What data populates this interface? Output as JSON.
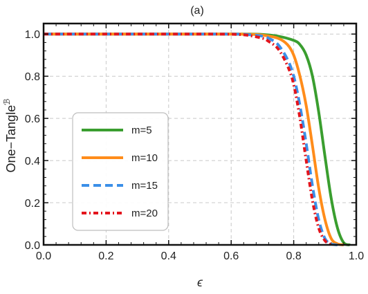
{
  "chart_data": {
    "type": "line",
    "title": "(a)",
    "xlabel": "ϵ",
    "ylabel": "One−Tangle",
    "ylabel_superscript": "ℬ",
    "xlim": [
      0,
      1
    ],
    "ylim": [
      0,
      1.05
    ],
    "xticks": [
      "0.0",
      "0.2",
      "0.4",
      "0.6",
      "0.8",
      "1.0"
    ],
    "yticks": [
      "0.0",
      "0.2",
      "0.4",
      "0.6",
      "0.8",
      "1.0"
    ],
    "grid": true,
    "legend_position": "center-left",
    "series": [
      {
        "name": "m=5",
        "color": "#3a9e2f",
        "dash": "solid",
        "x": [
          0.0,
          0.5,
          0.6,
          0.65,
          0.7,
          0.75,
          0.8,
          0.82,
          0.84,
          0.86,
          0.88,
          0.9,
          0.92,
          0.94,
          0.96,
          0.98
        ],
        "y": [
          1.0,
          1.0,
          1.0,
          1.0,
          0.998,
          0.99,
          0.97,
          0.95,
          0.9,
          0.8,
          0.63,
          0.42,
          0.22,
          0.08,
          0.01,
          0.0
        ]
      },
      {
        "name": "m=10",
        "color": "#ff8c1a",
        "dash": "solid",
        "x": [
          0.0,
          0.5,
          0.6,
          0.65,
          0.7,
          0.75,
          0.78,
          0.8,
          0.82,
          0.84,
          0.86,
          0.88,
          0.9,
          0.92,
          0.94,
          0.96
        ],
        "y": [
          1.0,
          1.0,
          1.0,
          0.999,
          0.995,
          0.98,
          0.95,
          0.9,
          0.8,
          0.66,
          0.47,
          0.27,
          0.12,
          0.03,
          0.005,
          0.0
        ]
      },
      {
        "name": "m=15",
        "color": "#3b8fe8",
        "dash": "dashed",
        "x": [
          0.0,
          0.5,
          0.6,
          0.65,
          0.7,
          0.72,
          0.75,
          0.78,
          0.8,
          0.82,
          0.84,
          0.86,
          0.88,
          0.9,
          0.92,
          0.94
        ],
        "y": [
          1.0,
          1.0,
          1.0,
          0.998,
          0.99,
          0.98,
          0.95,
          0.88,
          0.8,
          0.66,
          0.48,
          0.28,
          0.12,
          0.03,
          0.005,
          0.0
        ]
      },
      {
        "name": "m=20",
        "color": "#e3141c",
        "dash": "dashdot",
        "x": [
          0.0,
          0.5,
          0.6,
          0.62,
          0.65,
          0.7,
          0.72,
          0.75,
          0.78,
          0.8,
          0.82,
          0.84,
          0.86,
          0.88,
          0.9,
          0.92
        ],
        "y": [
          1.0,
          1.0,
          0.999,
          0.998,
          0.995,
          0.98,
          0.965,
          0.93,
          0.85,
          0.76,
          0.6,
          0.4,
          0.21,
          0.08,
          0.02,
          0.0
        ]
      }
    ]
  }
}
